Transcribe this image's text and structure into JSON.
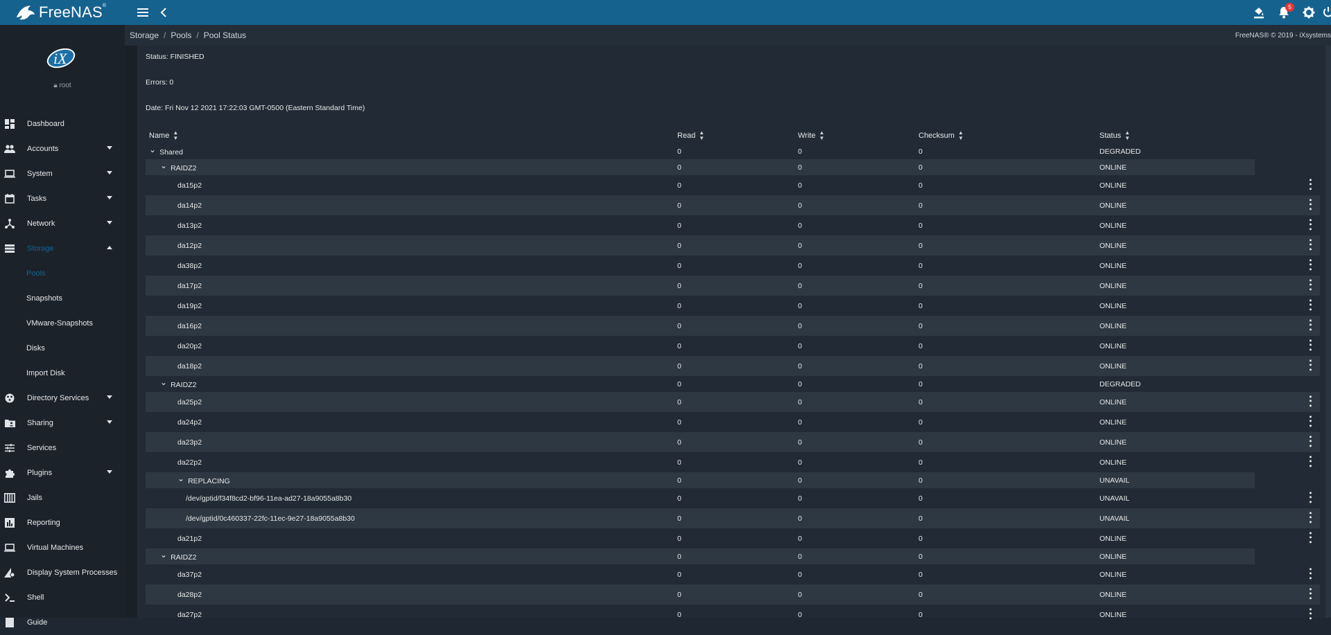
{
  "app": {
    "brand": "FreeNAS",
    "brand_mark": "®",
    "notification_count": "5"
  },
  "breadcrumb": [
    "Storage",
    "Pools",
    "Pool Status"
  ],
  "copyright": "FreeNAS® © 2019 - iXsystems",
  "sidebar": {
    "logo_text": "iX",
    "user": "root",
    "items": [
      {
        "label": "Dashboard",
        "icon": "dashboard-icon"
      },
      {
        "label": "Accounts",
        "icon": "people-icon",
        "expandable": true
      },
      {
        "label": "System",
        "icon": "laptop-icon",
        "expandable": true
      },
      {
        "label": "Tasks",
        "icon": "calendar-icon",
        "expandable": true
      },
      {
        "label": "Network",
        "icon": "network-icon",
        "expandable": true
      },
      {
        "label": "Storage",
        "icon": "storage-icon",
        "expandable": true,
        "expanded": true
      }
    ],
    "storage_sub": [
      "Pools",
      "Snapshots",
      "VMware-Snapshots",
      "Disks",
      "Import Disk"
    ],
    "items_after": [
      {
        "label": "Directory Services",
        "icon": "directory-icon",
        "expandable": true
      },
      {
        "label": "Sharing",
        "icon": "folder-shared-icon",
        "expandable": true
      },
      {
        "label": "Services",
        "icon": "tune-icon"
      },
      {
        "label": "Plugins",
        "icon": "extension-icon",
        "expandable": true
      },
      {
        "label": "Jails",
        "icon": "jail-icon"
      },
      {
        "label": "Reporting",
        "icon": "chart-icon"
      },
      {
        "label": "Virtual Machines",
        "icon": "computer-icon"
      },
      {
        "label": "Display System Processes",
        "icon": "processes-icon"
      },
      {
        "label": "Shell",
        "icon": "shell-icon"
      },
      {
        "label": "Guide",
        "icon": "guide-icon"
      }
    ]
  },
  "summary": {
    "status": "Status: FINISHED",
    "errors": "Errors: 0",
    "date": "Date: Fri Nov 12 2021 17:22:03 GMT-0500 (Eastern Standard Time)"
  },
  "table": {
    "headers": [
      "Name",
      "Read",
      "Write",
      "Checksum",
      "Status"
    ],
    "rows": [
      {
        "name": "Shared",
        "read": "0",
        "write": "0",
        "checksum": "0",
        "status": "DEGRADED",
        "level": 0,
        "toggle": true,
        "group": true,
        "shaded": false,
        "menu": false
      },
      {
        "name": "RAIDZ2",
        "read": "0",
        "write": "0",
        "checksum": "0",
        "status": "ONLINE",
        "level": 1,
        "toggle": true,
        "group": true,
        "shaded": true,
        "menu": false
      },
      {
        "name": "da15p2",
        "read": "0",
        "write": "0",
        "checksum": "0",
        "status": "ONLINE",
        "level": 2,
        "shaded": false,
        "menu": true
      },
      {
        "name": "da14p2",
        "read": "0",
        "write": "0",
        "checksum": "0",
        "status": "ONLINE",
        "level": 2,
        "shaded": true,
        "menu": true
      },
      {
        "name": "da13p2",
        "read": "0",
        "write": "0",
        "checksum": "0",
        "status": "ONLINE",
        "level": 2,
        "shaded": false,
        "menu": true
      },
      {
        "name": "da12p2",
        "read": "0",
        "write": "0",
        "checksum": "0",
        "status": "ONLINE",
        "level": 2,
        "shaded": true,
        "menu": true
      },
      {
        "name": "da38p2",
        "read": "0",
        "write": "0",
        "checksum": "0",
        "status": "ONLINE",
        "level": 2,
        "shaded": false,
        "menu": true
      },
      {
        "name": "da17p2",
        "read": "0",
        "write": "0",
        "checksum": "0",
        "status": "ONLINE",
        "level": 2,
        "shaded": true,
        "menu": true
      },
      {
        "name": "da19p2",
        "read": "0",
        "write": "0",
        "checksum": "0",
        "status": "ONLINE",
        "level": 2,
        "shaded": false,
        "menu": true
      },
      {
        "name": "da16p2",
        "read": "0",
        "write": "0",
        "checksum": "0",
        "status": "ONLINE",
        "level": 2,
        "shaded": true,
        "menu": true
      },
      {
        "name": "da20p2",
        "read": "0",
        "write": "0",
        "checksum": "0",
        "status": "ONLINE",
        "level": 2,
        "shaded": false,
        "menu": true
      },
      {
        "name": "da18p2",
        "read": "0",
        "write": "0",
        "checksum": "0",
        "status": "ONLINE",
        "level": 2,
        "shaded": true,
        "menu": true
      },
      {
        "name": "RAIDZ2",
        "read": "0",
        "write": "0",
        "checksum": "0",
        "status": "DEGRADED",
        "level": 1,
        "toggle": true,
        "group": true,
        "shaded": false,
        "menu": false
      },
      {
        "name": "da25p2",
        "read": "0",
        "write": "0",
        "checksum": "0",
        "status": "ONLINE",
        "level": 2,
        "shaded": true,
        "menu": true
      },
      {
        "name": "da24p2",
        "read": "0",
        "write": "0",
        "checksum": "0",
        "status": "ONLINE",
        "level": 2,
        "shaded": false,
        "menu": true
      },
      {
        "name": "da23p2",
        "read": "0",
        "write": "0",
        "checksum": "0",
        "status": "ONLINE",
        "level": 2,
        "shaded": true,
        "menu": true
      },
      {
        "name": "da22p2",
        "read": "0",
        "write": "0",
        "checksum": "0",
        "status": "ONLINE",
        "level": 2,
        "shaded": false,
        "menu": true
      },
      {
        "name": "REPLACING",
        "read": "0",
        "write": "0",
        "checksum": "0",
        "status": "UNAVAIL",
        "level": 2,
        "toggle": true,
        "group": true,
        "shaded": true,
        "menu": false
      },
      {
        "name": "/dev/gptid/f34f8cd2-bf96-11ea-ad27-18a9055a8b30",
        "read": "0",
        "write": "0",
        "checksum": "0",
        "status": "UNAVAIL",
        "level": 3,
        "shaded": false,
        "menu": true
      },
      {
        "name": "/dev/gptid/0c460337-22fc-11ec-9e27-18a9055a8b30",
        "read": "0",
        "write": "0",
        "checksum": "0",
        "status": "UNAVAIL",
        "level": 3,
        "shaded": true,
        "menu": true
      },
      {
        "name": "da21p2",
        "read": "0",
        "write": "0",
        "checksum": "0",
        "status": "ONLINE",
        "level": 2,
        "shaded": false,
        "menu": true
      },
      {
        "name": "RAIDZ2",
        "read": "0",
        "write": "0",
        "checksum": "0",
        "status": "ONLINE",
        "level": 1,
        "toggle": true,
        "group": true,
        "shaded": true,
        "menu": false
      },
      {
        "name": "da37p2",
        "read": "0",
        "write": "0",
        "checksum": "0",
        "status": "ONLINE",
        "level": 2,
        "shaded": false,
        "menu": true
      },
      {
        "name": "da28p2",
        "read": "0",
        "write": "0",
        "checksum": "0",
        "status": "ONLINE",
        "level": 2,
        "shaded": true,
        "menu": true
      },
      {
        "name": "da27p2",
        "read": "0",
        "write": "0",
        "checksum": "0",
        "status": "ONLINE",
        "level": 2,
        "shaded": false,
        "menu": true
      }
    ]
  }
}
